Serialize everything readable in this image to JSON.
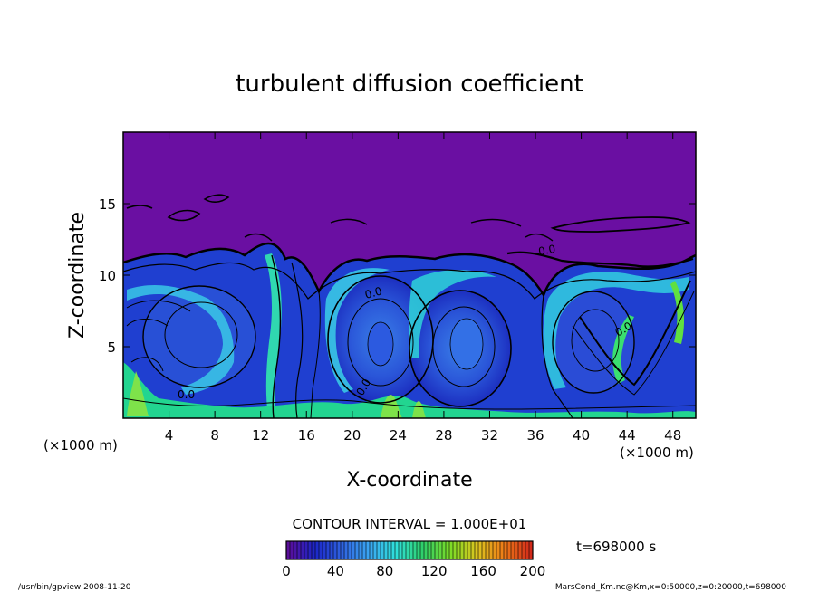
{
  "chart_data": {
    "type": "heatmap",
    "title": "turbulent diffusion coefficient",
    "xlabel": "X-coordinate",
    "ylabel": "Z-coordinate",
    "x_unit": "(×1000 m)",
    "y_unit": "(×1000 m)",
    "xlim": [
      0,
      50
    ],
    "ylim": [
      0,
      20
    ],
    "x_ticks": [
      4,
      8,
      12,
      16,
      20,
      24,
      28,
      32,
      36,
      40,
      44,
      48
    ],
    "y_ticks": [
      5,
      10,
      15
    ],
    "contour_interval_label": "CONTOUR INTERVAL = 1.000E+01",
    "contour_labels": [
      "0.0",
      "0.0",
      "0.0",
      "0.0",
      "0.0"
    ],
    "colorbar": {
      "min": 0,
      "max": 200,
      "ticks": [
        0,
        40,
        80,
        120,
        160,
        200
      ],
      "colors": [
        "#5a0f9a",
        "#1c26c8",
        "#2f63e2",
        "#3aa6f2",
        "#2fe0da",
        "#2fd06a",
        "#7bdc27",
        "#dcc61f",
        "#ef7b17",
        "#d22a1a"
      ]
    },
    "time_label": "t=698000 s",
    "footer_left": "/usr/bin/gpview  2008-11-20",
    "footer_right": "MarsCond_Km.nc@Km,x=0:50000,z=0:20000,t=698000"
  }
}
